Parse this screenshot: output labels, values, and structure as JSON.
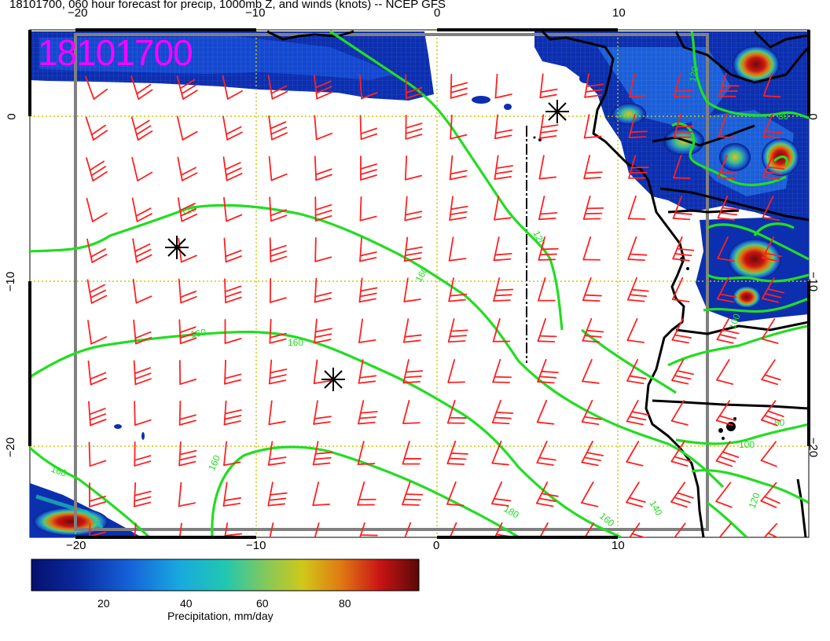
{
  "title": "18101700, 060 hour forecast for precip, 1000mb Z, and winds (knots) -- NCEP GFS",
  "stamp": "18101700",
  "map": {
    "lon_range": [
      -22.5,
      20.5
    ],
    "lat_range": [
      -25.5,
      5.5
    ],
    "gridlines_lon": [
      -20,
      -10,
      0,
      10
    ],
    "gridlines_lat": [
      0,
      -10,
      -20
    ],
    "top_ticks": [
      "−20",
      "−10",
      "0",
      "10"
    ],
    "bottom_ticks": [
      "−20",
      "−10",
      "0",
      "10"
    ],
    "left_ticks": [
      "0",
      "−10",
      "−20"
    ],
    "right_ticks": [
      "0",
      "−10",
      "−20"
    ],
    "contour_labels": [
      "120",
      "140",
      "160",
      "160",
      "120",
      "140",
      "180",
      "160",
      "100",
      "80",
      "80",
      "100",
      "120",
      "160",
      "120",
      "100"
    ],
    "contour_color": "#22dd22",
    "barb_color": "#ff2020",
    "precip_colors": [
      "#0a1a8c",
      "#1040c8",
      "#1a7adc",
      "#15b9c8",
      "#5ecb6a",
      "#c8c81e",
      "#e07a10",
      "#c81414",
      "#6e0a0a"
    ],
    "markers": "asterisk"
  },
  "colorbar": {
    "title": "Precipitation, mm/day",
    "ticks": [
      "20",
      "40",
      "60",
      "80"
    ],
    "range": [
      2,
      96
    ]
  }
}
